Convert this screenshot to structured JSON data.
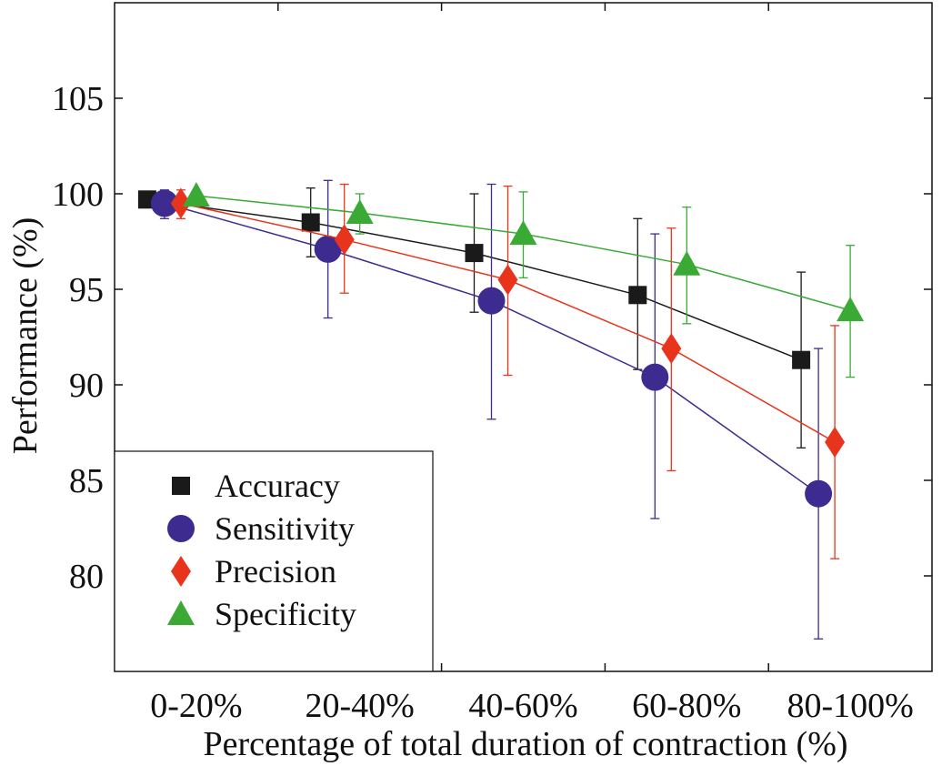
{
  "chart_data": {
    "type": "line",
    "title": "",
    "xlabel": "Percentage of total duration of contraction (%)",
    "ylabel": "Performance (%)",
    "categories": [
      "0-20%",
      "20-40%",
      "40-60%",
      "60-80%",
      "80-100%"
    ],
    "ylim": [
      75,
      110
    ],
    "yticks": [
      80,
      85,
      90,
      95,
      100,
      105
    ],
    "grid": false,
    "legend_position": "bottom-left",
    "series": [
      {
        "name": "Accuracy",
        "marker": "square",
        "color": "#1a1a1a",
        "values": [
          99.7,
          98.5,
          96.9,
          94.7,
          91.3
        ],
        "error_low": [
          99.4,
          96.7,
          93.8,
          90.8,
          86.7
        ],
        "error_high": [
          100.0,
          100.3,
          100.0,
          98.7,
          95.9
        ]
      },
      {
        "name": "Sensitivity",
        "marker": "circle",
        "color": "#3d2b8f",
        "values": [
          99.5,
          97.1,
          94.4,
          90.4,
          84.3
        ],
        "error_low": [
          98.7,
          93.5,
          88.2,
          83.0,
          76.7
        ],
        "error_high": [
          100.2,
          100.7,
          100.5,
          97.9,
          91.9
        ]
      },
      {
        "name": "Precision",
        "marker": "diamond",
        "color": "#e8341c",
        "values": [
          99.5,
          97.6,
          95.5,
          91.9,
          87.0
        ],
        "error_low": [
          98.7,
          94.8,
          90.5,
          85.5,
          80.9
        ],
        "error_high": [
          100.2,
          100.5,
          100.4,
          98.2,
          93.1
        ]
      },
      {
        "name": "Specificity",
        "marker": "triangle",
        "color": "#3aaa35",
        "values": [
          99.9,
          99.0,
          97.9,
          96.3,
          93.9
        ],
        "error_low": [
          99.7,
          97.9,
          95.6,
          93.2,
          90.4
        ],
        "error_high": [
          100.0,
          100.0,
          100.1,
          99.3,
          97.3
        ]
      }
    ]
  }
}
